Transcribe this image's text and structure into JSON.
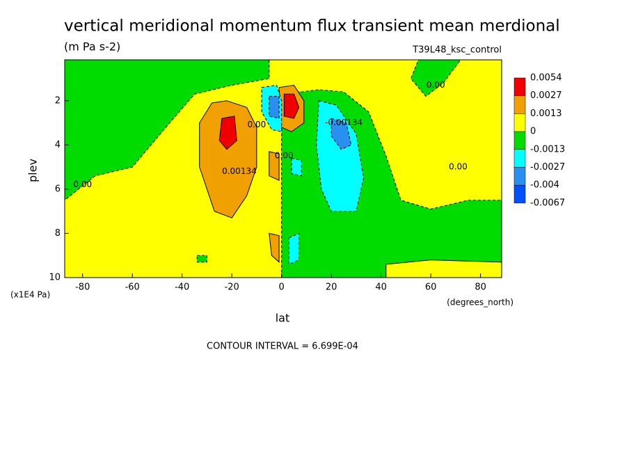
{
  "chart_data": {
    "type": "contour",
    "title": "vertical meridional momentum flux transient mean merdional",
    "subtitle": "(m Pa s-2)",
    "run_label": "T39L48_ksc_control",
    "x_label": "lat",
    "x_units": "(degrees_north)",
    "y_label": "plev",
    "y_units": "(x1E4 Pa)",
    "footnote": "CONTOUR INTERVAL = 6.699E-04",
    "xlim": [
      -87.2,
      88.5
    ],
    "ylim": [
      10,
      0.15
    ],
    "xticks": [
      -80,
      -60,
      -40,
      -20,
      0,
      20,
      40,
      60,
      80
    ],
    "yticks": [
      2,
      4,
      6,
      8,
      10
    ],
    "levels": [
      0.0054,
      0.0027,
      0.0013,
      0,
      -0.0013,
      -0.0027,
      -0.004,
      -0.0067
    ],
    "colors": [
      "#f00000",
      "#f0a000",
      "#ffff00",
      "#00dc00",
      "#00ffff",
      "#2a90f0",
      "#0050ff"
    ],
    "background_band": 2,
    "regions": [
      {
        "band": 3,
        "points": [
          [
            -87.2,
            0.15
          ],
          [
            -5,
            0.15
          ],
          [
            -5,
            1.0
          ],
          [
            -20,
            1.3
          ],
          [
            -35,
            1.7
          ],
          [
            -45,
            3.0
          ],
          [
            -60,
            5.0
          ],
          [
            -75,
            5.4
          ],
          [
            -87.2,
            6.5
          ]
        ]
      },
      {
        "band": 3,
        "points": [
          [
            0,
            1.5
          ],
          [
            8,
            1.6
          ],
          [
            15,
            1.5
          ],
          [
            25,
            1.6
          ],
          [
            35,
            2.5
          ],
          [
            42,
            4.5
          ],
          [
            48,
            6.5
          ],
          [
            60,
            6.9
          ],
          [
            75,
            6.5
          ],
          [
            88.5,
            6.5
          ],
          [
            88.5,
            10
          ],
          [
            0,
            10
          ]
        ]
      },
      {
        "band": 3,
        "points": [
          [
            55,
            0.15
          ],
          [
            72,
            0.15
          ],
          [
            65,
            1.2
          ],
          [
            58,
            1.8
          ],
          [
            52,
            1.0
          ]
        ]
      },
      {
        "band": 2,
        "points": [
          [
            42,
            9.4
          ],
          [
            60,
            9.2
          ],
          [
            88.5,
            9.3
          ],
          [
            88.5,
            10
          ],
          [
            42,
            10
          ]
        ]
      },
      {
        "band": 1,
        "points": [
          [
            -22,
            2.0
          ],
          [
            -14,
            2.3
          ],
          [
            -10,
            3.2
          ],
          [
            -10,
            5.0
          ],
          [
            -14,
            6.3
          ],
          [
            -20,
            7.3
          ],
          [
            -27,
            7.0
          ],
          [
            -33,
            5.0
          ],
          [
            -33,
            3.0
          ],
          [
            -28,
            2.1
          ]
        ]
      },
      {
        "band": 0,
        "points": [
          [
            -24,
            2.8
          ],
          [
            -19,
            2.7
          ],
          [
            -18,
            3.8
          ],
          [
            -22,
            4.2
          ],
          [
            -25,
            3.8
          ]
        ]
      },
      {
        "band": 1,
        "points": [
          [
            -1,
            1.4
          ],
          [
            5,
            1.3
          ],
          [
            9,
            2.0
          ],
          [
            9,
            3.0
          ],
          [
            4,
            3.4
          ],
          [
            0,
            3.2
          ]
        ]
      },
      {
        "band": 0,
        "points": [
          [
            1,
            1.7
          ],
          [
            5,
            1.7
          ],
          [
            7,
            2.3
          ],
          [
            5,
            2.8
          ],
          [
            1,
            2.7
          ]
        ]
      },
      {
        "band": 4,
        "points": [
          [
            -8,
            1.4
          ],
          [
            -2,
            1.3
          ],
          [
            0,
            2.0
          ],
          [
            0,
            3.4
          ],
          [
            -4,
            3.3
          ],
          [
            -8,
            2.5
          ]
        ]
      },
      {
        "band": 5,
        "points": [
          [
            -5,
            1.8
          ],
          [
            -1,
            1.8
          ],
          [
            -1,
            2.8
          ],
          [
            -5,
            2.7
          ]
        ]
      },
      {
        "band": 4,
        "points": [
          [
            15,
            2.0
          ],
          [
            22,
            2.2
          ],
          [
            30,
            3.5
          ],
          [
            33,
            5.5
          ],
          [
            30,
            7.0
          ],
          [
            20,
            7.0
          ],
          [
            16,
            6.0
          ],
          [
            14,
            4.0
          ]
        ]
      },
      {
        "band": 5,
        "points": [
          [
            20,
            2.8
          ],
          [
            26,
            3.0
          ],
          [
            28,
            4.0
          ],
          [
            24,
            4.2
          ],
          [
            20,
            3.6
          ]
        ]
      },
      {
        "band": 1,
        "points": [
          [
            -5,
            4.3
          ],
          [
            -1,
            4.4
          ],
          [
            -1,
            5.6
          ],
          [
            -5,
            5.4
          ]
        ]
      },
      {
        "band": 1,
        "points": [
          [
            -5,
            8.0
          ],
          [
            -1,
            8.1
          ],
          [
            -1,
            9.3
          ],
          [
            -4,
            9.0
          ]
        ]
      },
      {
        "band": 4,
        "points": [
          [
            4,
            4.6
          ],
          [
            8,
            4.7
          ],
          [
            8,
            5.4
          ],
          [
            4,
            5.3
          ]
        ]
      },
      {
        "band": 4,
        "points": [
          [
            3,
            8.2
          ],
          [
            7,
            8.0
          ],
          [
            7,
            9.2
          ],
          [
            3,
            9.4
          ]
        ]
      },
      {
        "band": 3,
        "points": [
          [
            -34,
            9.0
          ],
          [
            -30,
            9.0
          ],
          [
            -30,
            9.3
          ],
          [
            -34,
            9.3
          ]
        ]
      }
    ],
    "contour_labels": [
      {
        "text": "0.00",
        "lat": -80,
        "plev": 5.8
      },
      {
        "text": "0.00134",
        "lat": -17,
        "plev": 5.2
      },
      {
        "text": "0.00",
        "lat": -10,
        "plev": 3.1
      },
      {
        "text": "0.00",
        "lat": 1,
        "plev": 4.5
      },
      {
        "text": "-0.00134",
        "lat": 25,
        "plev": 3.0
      },
      {
        "text": "0.00",
        "lat": 62,
        "plev": 1.3
      },
      {
        "text": "0.00",
        "lat": 71,
        "plev": 5.0
      }
    ]
  }
}
